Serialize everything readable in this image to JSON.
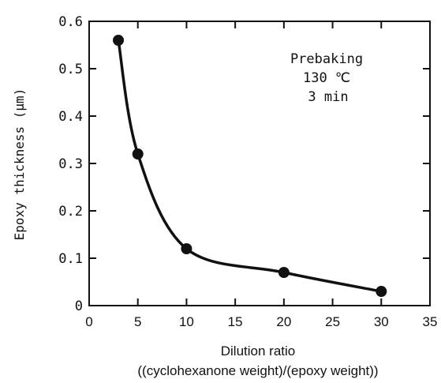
{
  "chart_data": {
    "type": "line",
    "title": "",
    "xlabel": "Dilution ratio",
    "xlabel_line2": "((cyclohexanone weight)/(epoxy weight))",
    "ylabel": "Epoxy thickness (μm)",
    "xlim": [
      0,
      35
    ],
    "ylim": [
      0,
      0.6
    ],
    "xticks": [
      "0",
      "5",
      "10",
      "15",
      "20",
      "25",
      "30",
      "35"
    ],
    "yticks": [
      "0",
      "0.1",
      "0.2",
      "0.3",
      "0.4",
      "0.5",
      "0.6"
    ],
    "grid": false,
    "series": [
      {
        "x": [
          3,
          5,
          10,
          20,
          30
        ],
        "y": [
          0.56,
          0.32,
          0.12,
          0.07,
          0.03
        ],
        "marker": "filled-circle",
        "color": "#111111"
      }
    ],
    "annotation": [
      "Prebaking",
      "130 ℃",
      "3 min"
    ]
  }
}
